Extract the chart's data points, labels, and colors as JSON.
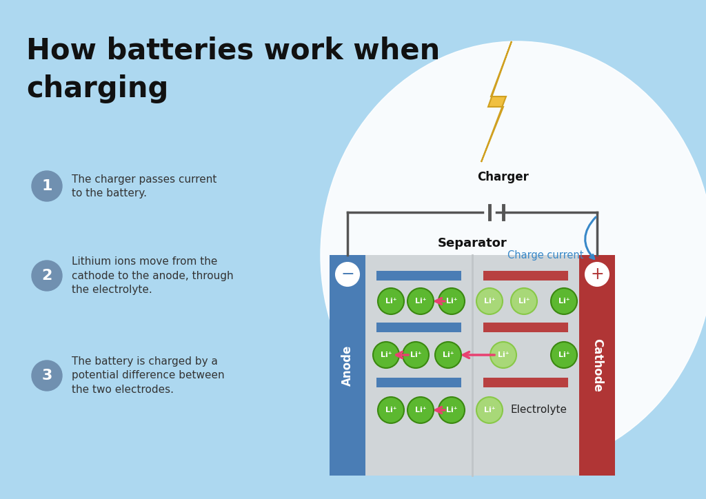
{
  "title_line1": "How batteries work when",
  "title_line2": "charging",
  "bg_color": "#add8f0",
  "step1_text": [
    "The charger passes current",
    "to the battery."
  ],
  "step2_text": [
    "Lithium ions move from the",
    "cathode to the anode, through",
    "the electrolyte."
  ],
  "step3_text": [
    "The battery is charged by a",
    "potential difference between",
    "the two electrodes."
  ],
  "anode_color": "#4a7db5",
  "cathode_color": "#b03535",
  "body_bg": "#d0d5d8",
  "anode_bar_color": "#4a7db5",
  "cathode_bar_color": "#b84040",
  "li_green": "#5cb830",
  "li_light": "#a8d878",
  "arrow_color": "#e84070",
  "charge_current_color": "#3888c8",
  "step_circle_color": "#7090b0",
  "wire_color": "#555555",
  "charger_label": "Charger",
  "charge_current_label": "Charge current",
  "separator_label": "Separator",
  "electrolyte_label": "Electrolyte",
  "anode_label": "Anode",
  "cathode_label": "Cathode",
  "bolt_color": "#f0c040",
  "bolt_edge": "#d0a020"
}
